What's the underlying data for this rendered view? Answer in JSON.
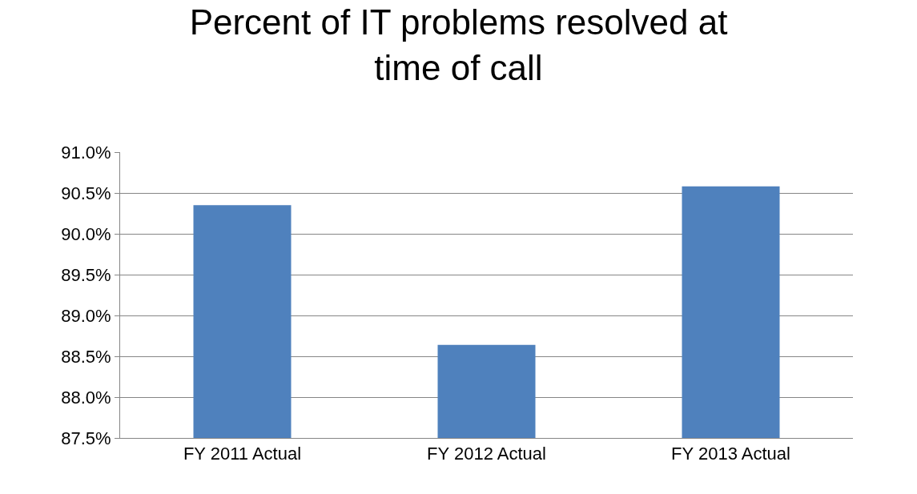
{
  "chart_data": {
    "type": "bar",
    "title": "Percent of IT problems resolved at\ntime of call",
    "categories": [
      "FY 2011 Actual",
      "FY 2012 Actual",
      "FY 2013 Actual"
    ],
    "values": [
      90.35,
      88.64,
      90.58
    ],
    "color": "#4f81bd",
    "ylim": [
      87.5,
      91.0
    ],
    "yticks": [
      {
        "value": 87.5,
        "label": "87.5%"
      },
      {
        "value": 88.0,
        "label": "88.0%"
      },
      {
        "value": 88.5,
        "label": "88.5%"
      },
      {
        "value": 89.0,
        "label": "89.0%"
      },
      {
        "value": 89.5,
        "label": "89.5%"
      },
      {
        "value": 90.0,
        "label": "90.0%"
      },
      {
        "value": 90.5,
        "label": "90.5%"
      },
      {
        "value": 91.0,
        "label": "91.0%"
      }
    ],
    "grid": "y"
  }
}
